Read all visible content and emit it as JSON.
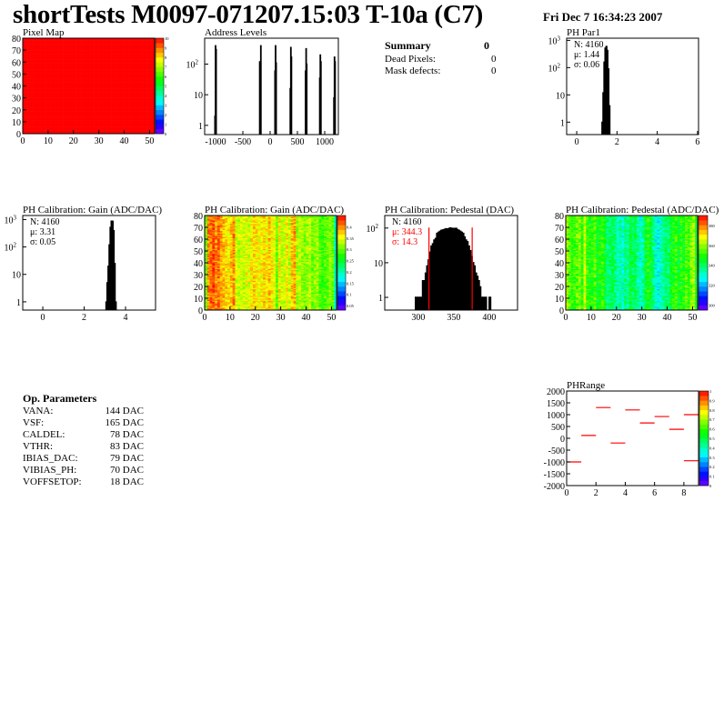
{
  "header": {
    "title": "shortTests M0097-071207.15:03 T-10a (C7)",
    "date": "Fri Dec  7 16:34:23 2007"
  },
  "summary": {
    "title": "Summary",
    "value": "0",
    "rows": [
      {
        "label": "Dead Pixels:",
        "value": "0"
      },
      {
        "label": "Mask defects:",
        "value": "0"
      }
    ]
  },
  "op_parameters": {
    "title": "Op. Parameters",
    "rows": [
      {
        "label": "VANA:",
        "value": "144 DAC"
      },
      {
        "label": "VSF:",
        "value": "165 DAC"
      },
      {
        "label": "CALDEL:",
        "value": "78 DAC"
      },
      {
        "label": "VTHR:",
        "value": "83 DAC"
      },
      {
        "label": "IBIAS_DAC:",
        "value": "79 DAC"
      },
      {
        "label": "VIBIAS_PH:",
        "value": "70 DAC"
      },
      {
        "label": "VOFFSETOP:",
        "value": "18 DAC"
      }
    ]
  },
  "chart_data": [
    {
      "id": "pixel-map",
      "type": "heatmap",
      "title": "Pixel Map",
      "xlim": [
        0,
        52
      ],
      "ylim": [
        0,
        80
      ],
      "xticks": [
        0,
        10,
        20,
        30,
        40,
        50
      ],
      "yticks": [
        0,
        10,
        20,
        30,
        40,
        50,
        60,
        70,
        80
      ],
      "zlim": [
        0,
        10
      ],
      "zticks": [
        "0",
        "1",
        "2",
        "3",
        "4",
        "5",
        "6",
        "7",
        "8",
        "9",
        "10"
      ],
      "uniform_value": 10
    },
    {
      "id": "address-levels",
      "type": "bar",
      "title": "Address Levels",
      "log_y": true,
      "xlim": [
        -1200,
        1250
      ],
      "ylim": [
        0.5,
        700
      ],
      "xticks": [
        -1000,
        -500,
        0,
        500,
        1000
      ],
      "yticks": [
        1,
        10,
        100
      ],
      "bin_width": 10,
      "bins": [
        [
          -1010,
          2
        ],
        [
          -1000,
          400
        ],
        [
          -990,
          300
        ],
        [
          -190,
          120
        ],
        [
          -180,
          25
        ],
        [
          -170,
          400
        ],
        [
          90,
          60
        ],
        [
          100,
          400
        ],
        [
          110,
          110
        ],
        [
          370,
          16
        ],
        [
          380,
          350
        ],
        [
          390,
          170
        ],
        [
          650,
          60
        ],
        [
          660,
          320
        ],
        [
          670,
          100
        ],
        [
          910,
          35
        ],
        [
          920,
          200
        ],
        [
          930,
          120
        ],
        [
          1170,
          8
        ],
        [
          1180,
          170
        ],
        [
          1190,
          120
        ]
      ]
    },
    {
      "id": "ph-par1",
      "type": "bar",
      "title": "PH Par1",
      "log_y": true,
      "xlim": [
        -0.5,
        6.05
      ],
      "ylim": [
        0.35,
        1200
      ],
      "xticks": [
        0,
        2,
        4,
        6
      ],
      "yticks": [
        1,
        10,
        100,
        1000
      ],
      "bin_width": 0.05,
      "bins": [
        [
          1.275,
          1
        ],
        [
          1.325,
          12
        ],
        [
          1.375,
          160
        ],
        [
          1.425,
          520
        ],
        [
          1.475,
          600
        ],
        [
          1.525,
          430
        ],
        [
          1.575,
          90
        ],
        [
          1.625,
          4
        ]
      ],
      "stats": [
        {
          "text": "N: 4160",
          "color": "#000000"
        },
        {
          "text": "μ: 1.44",
          "color": "#000000"
        },
        {
          "text": "σ: 0.06",
          "color": "#000000"
        }
      ]
    },
    {
      "id": "gain-hist",
      "type": "bar",
      "title": "PH Calibration: Gain (ADC/DAC)",
      "log_y": true,
      "xlim": [
        -0.97,
        5.45
      ],
      "ylim": [
        0.5,
        1400
      ],
      "xticks": [
        0,
        2,
        4
      ],
      "yticks": [
        1,
        10,
        100,
        1000
      ],
      "bin_width": 0.05,
      "bins": [
        [
          3.075,
          1
        ],
        [
          3.125,
          5
        ],
        [
          3.175,
          20
        ],
        [
          3.225,
          120
        ],
        [
          3.275,
          520
        ],
        [
          3.325,
          880
        ],
        [
          3.375,
          870
        ],
        [
          3.425,
          400
        ],
        [
          3.475,
          25
        ],
        [
          3.525,
          1
        ]
      ],
      "stats": [
        {
          "text": "N: 4160",
          "color": "#000000"
        },
        {
          "text": "μ: 3.31",
          "color": "#000000"
        },
        {
          "text": "σ: 0.05",
          "color": "#000000"
        }
      ]
    },
    {
      "id": "gain-map",
      "type": "heatmap",
      "title": "PH Calibration: Gain (ADC/DAC)",
      "xlim": [
        0,
        52
      ],
      "ylim": [
        0,
        80
      ],
      "xticks": [
        0,
        10,
        20,
        30,
        40,
        50
      ],
      "yticks": [
        0,
        10,
        20,
        30,
        40,
        50,
        60,
        70,
        80
      ],
      "zlim": [
        0.03,
        0.45
      ],
      "zticks": [
        "0.05",
        "0.1",
        "0.15",
        "0.2",
        "0.25",
        "0.3",
        "0.35",
        "0.4"
      ],
      "noise": 0.03,
      "column_means": [
        0.3,
        0.4,
        0.41,
        0.42,
        0.4,
        0.41,
        0.39,
        0.38,
        0.37,
        0.36,
        0.38,
        0.4,
        0.34,
        0.33,
        0.34,
        0.33,
        0.35,
        0.34,
        0.36,
        0.37,
        0.36,
        0.35,
        0.36,
        0.37,
        0.36,
        0.38,
        0.36,
        0.35,
        0.3,
        0.36,
        0.33,
        0.34,
        0.36,
        0.33,
        0.38,
        0.39,
        0.32,
        0.33,
        0.32,
        0.31,
        0.32,
        0.33,
        0.3,
        0.31,
        0.32,
        0.29,
        0.28,
        0.29,
        0.3,
        0.31,
        0.3,
        0.2
      ]
    },
    {
      "id": "pedestal-hist",
      "type": "bar",
      "title": "PH Calibration: Pedestal (DAC)",
      "log_y": true,
      "xlim": [
        252.6,
        440
      ],
      "ylim": [
        0.43,
        230
      ],
      "xticks": [
        300,
        350,
        400
      ],
      "yticks": [
        1,
        10,
        100
      ],
      "bin_width": 2,
      "fit_range": [
        315,
        376
      ],
      "bins": [
        [
          297,
          1
        ],
        [
          301,
          1
        ],
        [
          303,
          1
        ],
        [
          307,
          3
        ],
        [
          309,
          3
        ],
        [
          311,
          5
        ],
        [
          313,
          8
        ],
        [
          315,
          12
        ],
        [
          317,
          20
        ],
        [
          319,
          30
        ],
        [
          321,
          35
        ],
        [
          323,
          45
        ],
        [
          325,
          50
        ],
        [
          327,
          70
        ],
        [
          329,
          75
        ],
        [
          331,
          80
        ],
        [
          333,
          85
        ],
        [
          335,
          88
        ],
        [
          337,
          90
        ],
        [
          339,
          95
        ],
        [
          341,
          92
        ],
        [
          343,
          95
        ],
        [
          345,
          100
        ],
        [
          347,
          98
        ],
        [
          349,
          97
        ],
        [
          351,
          95
        ],
        [
          353,
          98
        ],
        [
          355,
          90
        ],
        [
          357,
          85
        ],
        [
          359,
          80
        ],
        [
          361,
          75
        ],
        [
          363,
          70
        ],
        [
          365,
          55
        ],
        [
          367,
          45
        ],
        [
          369,
          40
        ],
        [
          371,
          30
        ],
        [
          373,
          22
        ],
        [
          375,
          15
        ],
        [
          377,
          10
        ],
        [
          379,
          8
        ],
        [
          381,
          5
        ],
        [
          383,
          4
        ],
        [
          385,
          3
        ],
        [
          387,
          2
        ],
        [
          389,
          1
        ],
        [
          391,
          1
        ],
        [
          395,
          1
        ],
        [
          401,
          1
        ]
      ],
      "stats": [
        {
          "text": "N: 4160",
          "color": "#000000"
        },
        {
          "text": "μ: 344.3",
          "color": "#ff0000"
        },
        {
          "text": "σ: 14.3",
          "color": "#ff0000"
        }
      ]
    },
    {
      "id": "pedestal-map",
      "type": "heatmap",
      "title": "PH Calibration: Pedestal (ADC/DAC)",
      "xlim": [
        0,
        52
      ],
      "ylim": [
        0,
        80
      ],
      "xticks": [
        0,
        10,
        20,
        30,
        40,
        50
      ],
      "yticks": [
        0,
        10,
        20,
        30,
        40,
        50,
        60,
        70,
        80
      ],
      "zlim": [
        295,
        390
      ],
      "zticks": [
        "300",
        "320",
        "340",
        "360",
        "380"
      ],
      "noise": 8,
      "column_means": [
        360,
        355,
        350,
        352,
        355,
        358,
        350,
        365,
        352,
        348,
        350,
        355,
        345,
        348,
        350,
        345,
        338,
        340,
        342,
        338,
        332,
        335,
        330,
        338,
        335,
        345,
        340,
        342,
        335,
        330,
        335,
        345,
        350,
        345,
        338,
        330,
        328,
        332,
        335,
        340,
        338,
        345,
        348,
        352,
        345,
        350,
        348,
        355,
        352,
        358,
        362,
        345
      ]
    },
    {
      "id": "ph-range",
      "type": "scatter",
      "title": "PHRange",
      "xlim": [
        0,
        9
      ],
      "ylim": [
        -2000,
        2000
      ],
      "xticks": [
        0,
        2,
        4,
        6,
        8
      ],
      "yticks": [
        -2000,
        -1500,
        -1000,
        -500,
        0,
        500,
        1000,
        1500,
        2000
      ],
      "zlim": [
        0,
        1
      ],
      "zticks": [
        "0",
        "0.1",
        "0.2",
        "0.3",
        "0.4",
        "0.5",
        "0.6",
        "0.7",
        "0.8",
        "0.9",
        "1"
      ],
      "segments": [
        [
          0,
          -1000
        ],
        [
          1,
          120
        ],
        [
          2,
          1300
        ],
        [
          3,
          -200
        ],
        [
          4,
          1200
        ],
        [
          5,
          650
        ],
        [
          6,
          920
        ],
        [
          7,
          380
        ],
        [
          8,
          1000
        ],
        [
          8,
          -950
        ]
      ],
      "color": "#ff0000"
    }
  ]
}
